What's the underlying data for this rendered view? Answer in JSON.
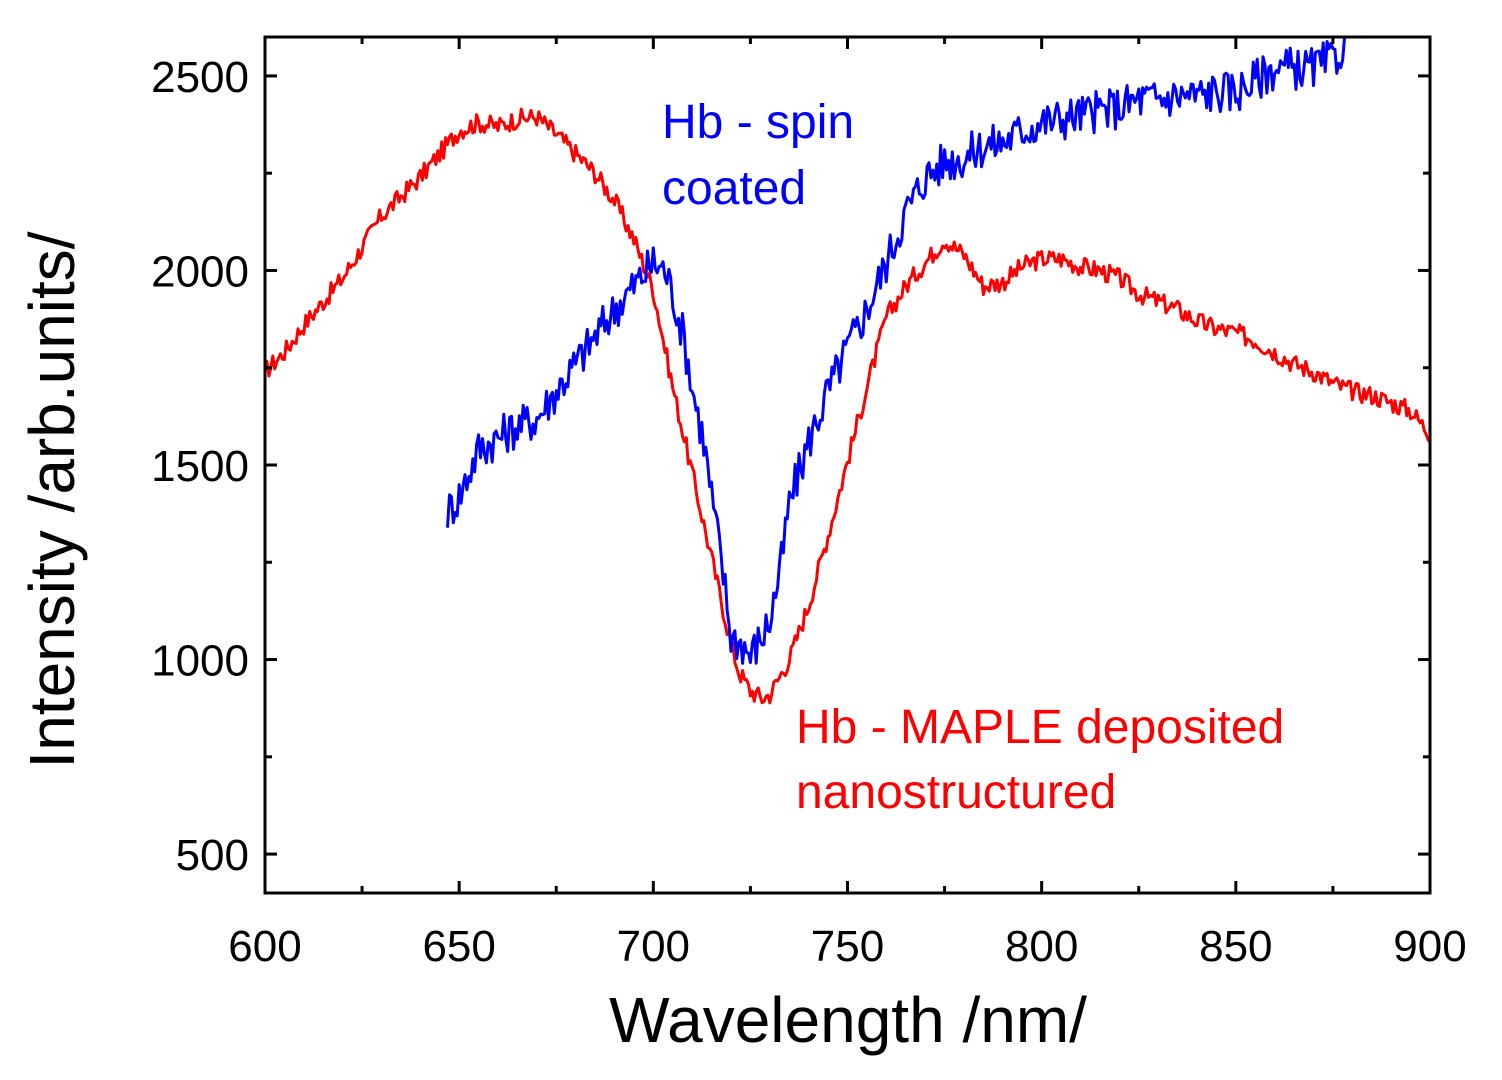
{
  "chart_data": {
    "type": "line",
    "xlabel": "Wavelength /nm/",
    "ylabel": "Intensity /arb.units/",
    "xlim": [
      600,
      900
    ],
    "ylim": [
      400,
      2600
    ],
    "x_ticks": [
      600,
      650,
      700,
      750,
      800,
      850,
      900
    ],
    "y_ticks": [
      500,
      1000,
      1500,
      2000,
      2500
    ],
    "grid": false,
    "legend": "none",
    "series": [
      {
        "color": "#ff0000",
        "x": [
          600,
          605,
          610,
          615,
          620,
          625,
          630,
          635,
          640,
          645,
          650,
          655,
          660,
          665,
          670,
          675,
          680,
          685,
          690,
          695,
          700,
          705,
          710,
          715,
          718,
          720,
          722,
          725,
          728,
          730,
          735,
          740,
          745,
          750,
          755,
          760,
          765,
          770,
          775,
          780,
          785,
          790,
          795,
          800,
          805,
          810,
          815,
          820,
          825,
          830,
          835,
          840,
          845,
          850,
          855,
          860,
          865,
          870,
          875,
          880,
          885,
          890,
          895,
          900
        ],
        "y": [
          1740,
          1790,
          1860,
          1920,
          1980,
          2060,
          2140,
          2190,
          2240,
          2300,
          2360,
          2380,
          2370,
          2390,
          2395,
          2350,
          2300,
          2250,
          2180,
          2080,
          1950,
          1700,
          1480,
          1260,
          1130,
          1040,
          970,
          920,
          900,
          910,
          1000,
          1140,
          1320,
          1510,
          1700,
          1880,
          1960,
          2020,
          2080,
          2040,
          1960,
          1970,
          2010,
          2030,
          2030,
          2010,
          2000,
          1980,
          1940,
          1920,
          1900,
          1870,
          1850,
          1840,
          1820,
          1790,
          1760,
          1740,
          1710,
          1690,
          1680,
          1660,
          1640,
          1580
        ],
        "noise": 25
      },
      {
        "color": "#0000ff",
        "x": [
          647,
          650,
          655,
          660,
          665,
          670,
          675,
          680,
          685,
          690,
          695,
          700,
          703,
          705,
          708,
          710,
          713,
          715,
          718,
          720,
          723,
          725,
          728,
          730,
          733,
          735,
          740,
          745,
          750,
          755,
          760,
          765,
          770,
          775,
          780,
          785,
          790,
          795,
          800,
          805,
          810,
          815,
          820,
          825,
          830,
          835,
          840,
          845,
          850,
          855,
          860,
          865,
          870,
          875,
          878
        ],
        "y": [
          1380,
          1420,
          1540,
          1570,
          1600,
          1620,
          1690,
          1760,
          1830,
          1900,
          1960,
          2020,
          2000,
          1940,
          1820,
          1700,
          1560,
          1420,
          1220,
          1060,
          1040,
          1010,
          1060,
          1100,
          1250,
          1400,
          1560,
          1690,
          1800,
          1900,
          2020,
          2150,
          2240,
          2280,
          2290,
          2320,
          2330,
          2360,
          2380,
          2390,
          2400,
          2410,
          2420,
          2440,
          2440,
          2450,
          2450,
          2460,
          2460,
          2490,
          2520,
          2520,
          2520,
          2540,
          2580
        ],
        "noise": 55
      }
    ],
    "annotations": [
      {
        "lines": [
          "Hb - spin",
          "coated"
        ],
        "color": "#0000ff"
      },
      {
        "lines": [
          "Hb - MAPLE deposited",
          "nanostructured"
        ],
        "color": "#ff0000"
      }
    ]
  }
}
